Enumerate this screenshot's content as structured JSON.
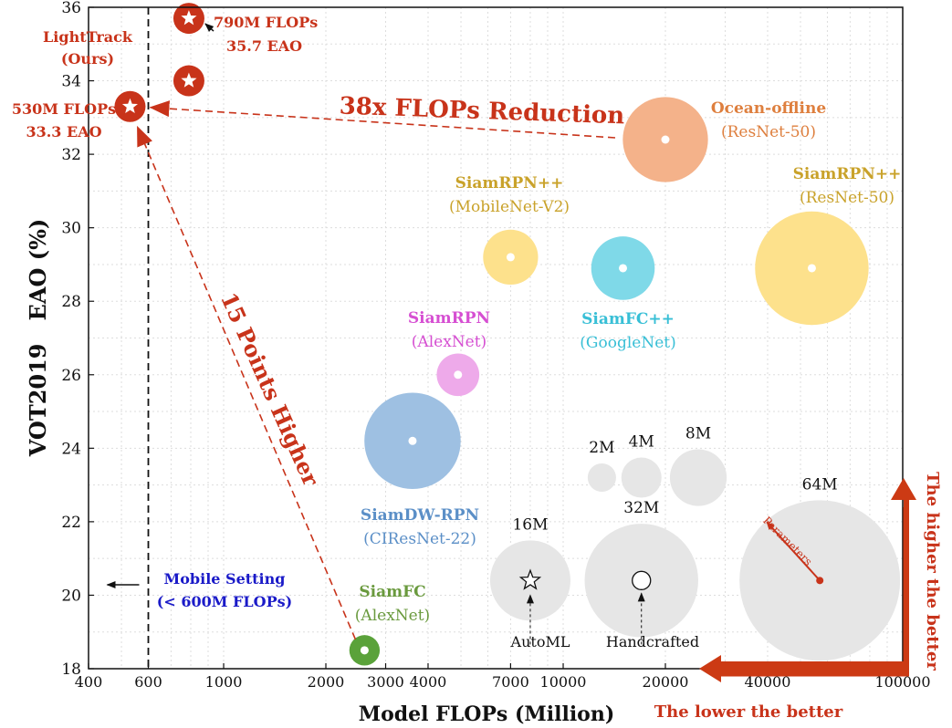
{
  "chart_data": {
    "type": "scatter",
    "xscale": "log",
    "xlim": [
      400,
      100000
    ],
    "ylim": [
      18,
      36
    ],
    "xlabel": "Model FLOPs (Million)",
    "ylabel": "VOT2019   EAO (%)",
    "xticks": [
      400,
      600,
      1000,
      2000,
      3000,
      4000,
      7000,
      10000,
      20000,
      40000,
      100000
    ],
    "yticks": [
      18,
      20,
      22,
      24,
      26,
      28,
      30,
      32,
      34,
      36
    ],
    "mobile_limit": 600,
    "trackers": [
      {
        "id": "siamfc",
        "name": "SiamFC",
        "backbone": "(AlexNet)",
        "x": 2600,
        "y": 18.5,
        "params": 2.3,
        "color": "#5aa23a",
        "label_color": "#6a9a3e"
      },
      {
        "id": "siamdw",
        "name": "SiamDW-RPN",
        "backbone": "(CIResNet-22)",
        "x": 3600,
        "y": 24.2,
        "params": 23,
        "color": "#9ec0e2",
        "label_color": "#5b8fc7"
      },
      {
        "id": "siamrpn",
        "name": "SiamRPN",
        "backbone": "(AlexNet)",
        "x": 4900,
        "y": 26.0,
        "params": 4.5,
        "color": "#eeaaea",
        "label_color": "#d64fd2"
      },
      {
        "id": "siamrpn-mobile",
        "name": "SiamRPN++",
        "backbone": "(MobileNet-V2)",
        "x": 7000,
        "y": 29.2,
        "params": 7.5,
        "color": "#fde18c",
        "label_color": "#c9a22a"
      },
      {
        "id": "siamfcpp",
        "name": "SiamFC++",
        "backbone": "(GoogleNet)",
        "x": 15000,
        "y": 28.9,
        "params": 10,
        "color": "#7fd9e8",
        "label_color": "#38bfd6"
      },
      {
        "id": "ocean",
        "name": "Ocean-offline",
        "backbone": "(ResNet-50)",
        "x": 20000,
        "y": 32.4,
        "params": 18,
        "color": "#f4b28a",
        "label_color": "#de7f3e"
      },
      {
        "id": "siamrpn-resnet",
        "name": "SiamRPN++",
        "backbone": "(ResNet-50)",
        "x": 54000,
        "y": 28.9,
        "params": 32,
        "color": "#fde18c",
        "label_color": "#c9a22a"
      }
    ],
    "lighttrack": {
      "name": "LightTrack",
      "sub": "(Ours)",
      "points": [
        {
          "x": 530,
          "y": 33.3
        },
        {
          "x": 790,
          "y": 34.0
        },
        {
          "x": 790,
          "y": 35.7
        }
      ],
      "color": "#c8331a",
      "label_color": "#c8331a"
    },
    "legend_sizes": [
      {
        "label": "2M",
        "x": 13000,
        "y": 23.2,
        "params": 2
      },
      {
        "label": "4M",
        "x": 17000,
        "y": 23.2,
        "params": 4
      },
      {
        "label": "8M",
        "x": 25000,
        "y": 23.2,
        "params": 8
      },
      {
        "label": "16M",
        "x": 8000,
        "y": 20.4,
        "params": 16
      },
      {
        "label": "32M",
        "x": 17000,
        "y": 20.4,
        "params": 32
      },
      {
        "label": "64M",
        "x": 57000,
        "y": 20.4,
        "params": 64
      }
    ]
  },
  "annotations": {
    "flops_790": "790M FLOPs",
    "eao_357": "35.7 EAO",
    "flops_530": "530M FLOPs",
    "eao_333": "33.3 EAO",
    "reduction": "38x FLOPs Reduction",
    "higher": "15 Points Higher",
    "mobile_1": "Mobile Setting",
    "mobile_2": "(< 600M FLOPs)",
    "parameters": "Parameters",
    "automl": "AutoML",
    "handcrafted": "Handcrafted",
    "lower_better": "The lower the better",
    "higher_better": "The higher the better"
  },
  "colors": {
    "accent": "#c8331a",
    "arrow": "#cc3a14",
    "mobile_blue": "#1a1ac8",
    "gray_bubble": "#e6e6e6"
  }
}
